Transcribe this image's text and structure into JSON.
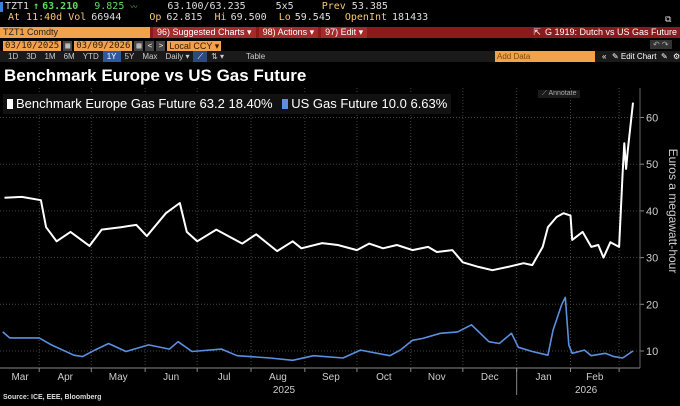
{
  "quote": {
    "ticker": "TZT1",
    "arrow": "↑",
    "last": "63.210",
    "change": "9.825",
    "bid_ask": "63.100/63.235",
    "size": "5x5",
    "prev_label": "Prev",
    "prev": "53.385",
    "time": "At 11:40d",
    "vol_label": "Vol",
    "vol": "66944",
    "op_label": "Op",
    "op": "62.815",
    "hi_label": "Hi",
    "hi": "69.500",
    "lo_label": "Lo",
    "lo": "59.545",
    "oi_label": "OpenInt",
    "oi": "181433"
  },
  "toolbar": {
    "security": "TZT1 Comdty",
    "suggested": "96) Suggested Charts ▾",
    "actions": "98) Actions ▾",
    "edit": "97) Edit ▾",
    "chart_name": "G 1919: Dutch vs US Gas Future",
    "start_date": "03/10/2025",
    "end_date": "03/09/2026",
    "currency": "Local CCY ▾",
    "periods": [
      "1D",
      "3D",
      "1M",
      "6M",
      "YTD",
      "1Y",
      "5Y",
      "Max"
    ],
    "active_period": "1Y",
    "frequency": "Daily ▾",
    "table": "Table",
    "add_data": "Add Data",
    "edit_chart": "✎ Edit Chart"
  },
  "annotate": "⟋ Annotate",
  "colors": {
    "europe": "#ffffff",
    "us": "#5b8fe0",
    "accent": "#f1a24a",
    "bar": "#8b1a1a"
  },
  "chart_data": {
    "type": "line",
    "title": "Benchmark Europe vs US Gas Future",
    "ylabel": "Euros a megawatt-hour",
    "ylim": [
      7,
      65
    ],
    "yticks": [
      10,
      20,
      30,
      40,
      50,
      60
    ],
    "xlim": [
      "2025-03-10",
      "2026-03-09"
    ],
    "month_labels": [
      "Mar",
      "Apr",
      "May",
      "Jun",
      "Jul",
      "Aug",
      "Sep",
      "Oct",
      "Nov",
      "Dec",
      "Jan",
      "Feb"
    ],
    "year_labels": [
      "2025",
      "2026"
    ],
    "grid": true,
    "legend": "top-left",
    "source": "Source: ICE, EEE, Bloomberg",
    "series": [
      {
        "name": "Benchmark Europe Gas Future",
        "legend_value": "63.2",
        "legend_change": "18.40%",
        "color": "#ffffff",
        "points": [
          [
            "2025-03-12",
            42.8
          ],
          [
            "2025-03-22",
            43
          ],
          [
            "2025-04-02",
            42.3
          ],
          [
            "2025-04-05",
            36.5
          ],
          [
            "2025-04-11",
            33.5
          ],
          [
            "2025-04-19",
            35.5
          ],
          [
            "2025-04-30",
            32.5
          ],
          [
            "2025-05-07",
            36
          ],
          [
            "2025-05-18",
            36.5
          ],
          [
            "2025-05-27",
            37
          ],
          [
            "2025-06-02",
            34.6
          ],
          [
            "2025-06-13",
            39.5
          ],
          [
            "2025-06-21",
            41.7
          ],
          [
            "2025-06-25",
            35.5
          ],
          [
            "2025-07-01",
            33.5
          ],
          [
            "2025-07-12",
            36
          ],
          [
            "2025-07-27",
            33
          ],
          [
            "2025-08-04",
            35
          ],
          [
            "2025-08-16",
            31.4
          ],
          [
            "2025-08-25",
            33.5
          ],
          [
            "2025-08-30",
            32
          ],
          [
            "2025-09-11",
            33.1
          ],
          [
            "2025-09-20",
            32.7
          ],
          [
            "2025-10-01",
            31.6
          ],
          [
            "2025-10-08",
            33
          ],
          [
            "2025-10-16",
            32
          ],
          [
            "2025-10-24",
            32.7
          ],
          [
            "2025-11-02",
            31.6
          ],
          [
            "2025-11-11",
            32.3
          ],
          [
            "2025-11-16",
            31.2
          ],
          [
            "2025-11-25",
            31.6
          ],
          [
            "2025-12-01",
            29
          ],
          [
            "2025-12-10",
            28
          ],
          [
            "2025-12-18",
            27.3
          ],
          [
            "2025-12-27",
            28
          ],
          [
            "2026-01-05",
            28.8
          ],
          [
            "2026-01-10",
            28.4
          ],
          [
            "2026-01-16",
            32.3
          ],
          [
            "2026-01-19",
            36.5
          ],
          [
            "2026-01-24",
            38.7
          ],
          [
            "2026-01-28",
            39.5
          ],
          [
            "2026-02-01",
            39
          ],
          [
            "2026-02-02",
            33.8
          ],
          [
            "2026-02-08",
            35.5
          ],
          [
            "2026-02-13",
            32.3
          ],
          [
            "2026-02-17",
            32.7
          ],
          [
            "2026-02-20",
            30
          ],
          [
            "2026-02-24",
            33.3
          ],
          [
            "2026-03-01",
            32.3
          ],
          [
            "2026-03-03",
            48
          ],
          [
            "2026-03-04",
            54.5
          ],
          [
            "2026-03-05",
            49
          ],
          [
            "2026-03-06",
            53
          ],
          [
            "2026-03-09",
            63.2
          ]
        ]
      },
      {
        "name": "US Gas Future",
        "legend_value": "10.0",
        "legend_change": "6.63%",
        "color": "#5b8fe0",
        "points": [
          [
            "2025-03-11",
            14.1
          ],
          [
            "2025-03-15",
            12.8
          ],
          [
            "2025-04-01",
            12.8
          ],
          [
            "2025-04-08",
            11.3
          ],
          [
            "2025-04-21",
            9.1
          ],
          [
            "2025-04-26",
            8.8
          ],
          [
            "2025-05-03",
            10.2
          ],
          [
            "2025-05-11",
            11.6
          ],
          [
            "2025-05-21",
            9.9
          ],
          [
            "2025-06-03",
            11.3
          ],
          [
            "2025-06-15",
            10.4
          ],
          [
            "2025-06-20",
            12
          ],
          [
            "2025-06-28",
            9.9
          ],
          [
            "2025-07-15",
            10.4
          ],
          [
            "2025-07-24",
            9
          ],
          [
            "2025-08-12",
            8.5
          ],
          [
            "2025-08-25",
            8
          ],
          [
            "2025-09-06",
            9
          ],
          [
            "2025-09-23",
            8.5
          ],
          [
            "2025-10-03",
            10.2
          ],
          [
            "2025-10-20",
            9
          ],
          [
            "2025-10-26",
            10.2
          ],
          [
            "2025-11-02",
            12.3
          ],
          [
            "2025-11-08",
            12.7
          ],
          [
            "2025-11-18",
            13.8
          ],
          [
            "2025-11-28",
            14.1
          ],
          [
            "2025-12-06",
            15.6
          ],
          [
            "2025-12-16",
            12
          ],
          [
            "2025-12-22",
            11.6
          ],
          [
            "2025-12-29",
            13.8
          ],
          [
            "2026-01-02",
            10.8
          ],
          [
            "2026-01-10",
            9.9
          ],
          [
            "2026-01-19",
            9.1
          ],
          [
            "2026-01-22",
            14.5
          ],
          [
            "2026-01-27",
            20
          ],
          [
            "2026-01-29",
            21.5
          ],
          [
            "2026-01-31",
            11.3
          ],
          [
            "2026-02-02",
            9.5
          ],
          [
            "2026-02-09",
            10.2
          ],
          [
            "2026-02-13",
            9
          ],
          [
            "2026-02-21",
            9.5
          ],
          [
            "2026-02-26",
            8.8
          ],
          [
            "2026-03-03",
            8.5
          ],
          [
            "2026-03-09",
            10
          ]
        ]
      }
    ]
  }
}
